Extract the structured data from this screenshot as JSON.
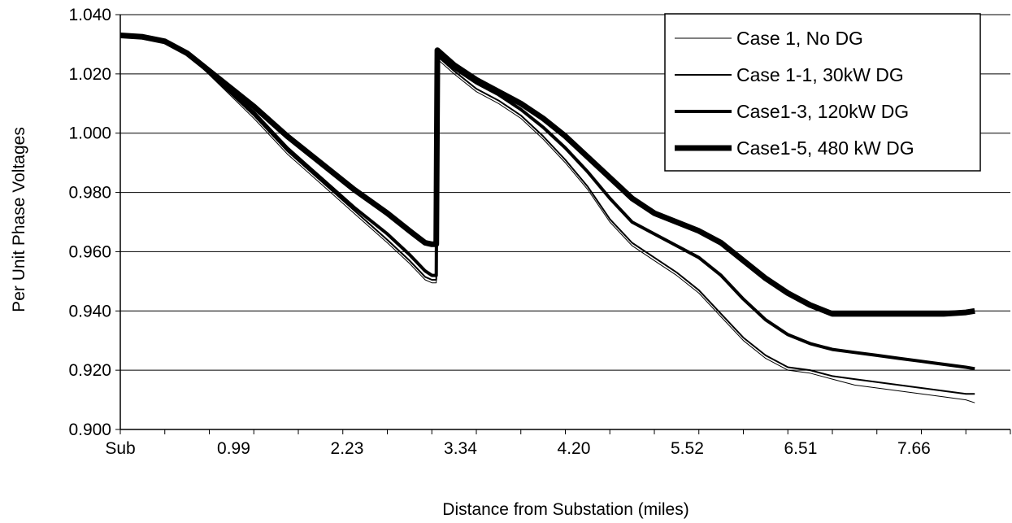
{
  "chart_data": {
    "type": "line",
    "title": "",
    "xlabel": "Distance from Substation (miles)",
    "ylabel": "Per Unit Phase Voltages",
    "ylim": [
      0.9,
      1.04
    ],
    "yticks": [
      "0.900",
      "0.920",
      "0.940",
      "0.960",
      "0.980",
      "1.000",
      "1.020",
      "1.040"
    ],
    "ytick_values": [
      0.9,
      0.92,
      0.94,
      0.96,
      0.98,
      1.0,
      1.02,
      1.04
    ],
    "xlim": [
      0,
      400
    ],
    "xtick_labels": [
      "Sub",
      "0.99",
      "2.23",
      "3.34",
      "4.20",
      "5.52",
      "6.51",
      "7.66"
    ],
    "grid": "horizontal",
    "legend_position": "top-right",
    "series": [
      {
        "name": "Case 1, No DG",
        "width": 1,
        "points": [
          [
            0,
            1.033
          ],
          [
            10,
            1.0325
          ],
          [
            20,
            1.031
          ],
          [
            30,
            1.027
          ],
          [
            45,
            1.016
          ],
          [
            60,
            1.005
          ],
          [
            75,
            0.993
          ],
          [
            90,
            0.983
          ],
          [
            105,
            0.973
          ],
          [
            120,
            0.963
          ],
          [
            130,
            0.956
          ],
          [
            137,
            0.9505
          ],
          [
            140,
            0.9495
          ],
          [
            142,
            0.9495
          ],
          [
            142.5,
            1.025
          ],
          [
            150,
            1.02
          ],
          [
            160,
            1.014
          ],
          [
            170,
            1.01
          ],
          [
            180,
            1.005
          ],
          [
            190,
            0.998
          ],
          [
            200,
            0.99
          ],
          [
            210,
            0.981
          ],
          [
            220,
            0.97
          ],
          [
            230,
            0.962
          ],
          [
            240,
            0.957
          ],
          [
            250,
            0.952
          ],
          [
            260,
            0.946
          ],
          [
            270,
            0.938
          ],
          [
            280,
            0.93
          ],
          [
            290,
            0.924
          ],
          [
            300,
            0.92
          ],
          [
            310,
            0.919
          ],
          [
            320,
            0.917
          ],
          [
            330,
            0.915
          ],
          [
            340,
            0.914
          ],
          [
            350,
            0.913
          ],
          [
            360,
            0.912
          ],
          [
            370,
            0.911
          ],
          [
            380,
            0.91
          ],
          [
            384,
            0.909
          ]
        ]
      },
      {
        "name": "Case 1-1, 30kW DG",
        "width": 2,
        "points": [
          [
            0,
            1.033
          ],
          [
            10,
            1.0325
          ],
          [
            20,
            1.031
          ],
          [
            30,
            1.027
          ],
          [
            45,
            1.0165
          ],
          [
            60,
            1.006
          ],
          [
            75,
            0.994
          ],
          [
            90,
            0.984
          ],
          [
            105,
            0.974
          ],
          [
            120,
            0.964
          ],
          [
            130,
            0.957
          ],
          [
            137,
            0.9515
          ],
          [
            140,
            0.9505
          ],
          [
            142,
            0.9505
          ],
          [
            142.5,
            1.026
          ],
          [
            150,
            1.021
          ],
          [
            160,
            1.015
          ],
          [
            170,
            1.011
          ],
          [
            180,
            1.006
          ],
          [
            190,
            0.999
          ],
          [
            200,
            0.991
          ],
          [
            210,
            0.982
          ],
          [
            220,
            0.971
          ],
          [
            230,
            0.963
          ],
          [
            240,
            0.958
          ],
          [
            250,
            0.953
          ],
          [
            260,
            0.947
          ],
          [
            270,
            0.939
          ],
          [
            280,
            0.931
          ],
          [
            290,
            0.925
          ],
          [
            300,
            0.921
          ],
          [
            310,
            0.92
          ],
          [
            320,
            0.918
          ],
          [
            330,
            0.917
          ],
          [
            340,
            0.916
          ],
          [
            350,
            0.915
          ],
          [
            360,
            0.914
          ],
          [
            370,
            0.913
          ],
          [
            380,
            0.912
          ],
          [
            384,
            0.912
          ]
        ]
      },
      {
        "name": "Case1-3, 120kW DG",
        "width": 4,
        "points": [
          [
            0,
            1.033
          ],
          [
            10,
            1.0325
          ],
          [
            20,
            1.031
          ],
          [
            30,
            1.027
          ],
          [
            45,
            1.017
          ],
          [
            60,
            1.007
          ],
          [
            75,
            0.995
          ],
          [
            90,
            0.985
          ],
          [
            105,
            0.975
          ],
          [
            120,
            0.966
          ],
          [
            130,
            0.959
          ],
          [
            137,
            0.9535
          ],
          [
            140,
            0.952
          ],
          [
            142,
            0.952
          ],
          [
            142.5,
            1.027
          ],
          [
            150,
            1.022
          ],
          [
            160,
            1.017
          ],
          [
            170,
            1.013
          ],
          [
            180,
            1.008
          ],
          [
            190,
            1.002
          ],
          [
            200,
            0.995
          ],
          [
            210,
            0.987
          ],
          [
            220,
            0.978
          ],
          [
            230,
            0.97
          ],
          [
            240,
            0.966
          ],
          [
            250,
            0.962
          ],
          [
            260,
            0.958
          ],
          [
            270,
            0.952
          ],
          [
            280,
            0.944
          ],
          [
            290,
            0.937
          ],
          [
            300,
            0.932
          ],
          [
            310,
            0.929
          ],
          [
            320,
            0.927
          ],
          [
            330,
            0.926
          ],
          [
            340,
            0.925
          ],
          [
            350,
            0.924
          ],
          [
            360,
            0.923
          ],
          [
            370,
            0.922
          ],
          [
            380,
            0.921
          ],
          [
            384,
            0.9205
          ]
        ]
      },
      {
        "name": "Case1-5, 480 kW DG",
        "width": 7,
        "points": [
          [
            0,
            1.033
          ],
          [
            10,
            1.0325
          ],
          [
            20,
            1.031
          ],
          [
            30,
            1.027
          ],
          [
            45,
            1.018
          ],
          [
            60,
            1.009
          ],
          [
            75,
            0.999
          ],
          [
            90,
            0.99
          ],
          [
            105,
            0.981
          ],
          [
            120,
            0.973
          ],
          [
            130,
            0.967
          ],
          [
            137,
            0.963
          ],
          [
            140,
            0.9625
          ],
          [
            142,
            0.9625
          ],
          [
            142.5,
            1.028
          ],
          [
            150,
            1.023
          ],
          [
            160,
            1.018
          ],
          [
            170,
            1.014
          ],
          [
            180,
            1.01
          ],
          [
            190,
            1.005
          ],
          [
            200,
            0.999
          ],
          [
            210,
            0.992
          ],
          [
            220,
            0.985
          ],
          [
            230,
            0.978
          ],
          [
            240,
            0.973
          ],
          [
            250,
            0.97
          ],
          [
            260,
            0.967
          ],
          [
            270,
            0.963
          ],
          [
            280,
            0.957
          ],
          [
            290,
            0.951
          ],
          [
            300,
            0.946
          ],
          [
            310,
            0.942
          ],
          [
            320,
            0.939
          ],
          [
            330,
            0.939
          ],
          [
            340,
            0.939
          ],
          [
            350,
            0.939
          ],
          [
            360,
            0.939
          ],
          [
            370,
            0.939
          ],
          [
            380,
            0.9395
          ],
          [
            384,
            0.94
          ]
        ]
      }
    ]
  }
}
